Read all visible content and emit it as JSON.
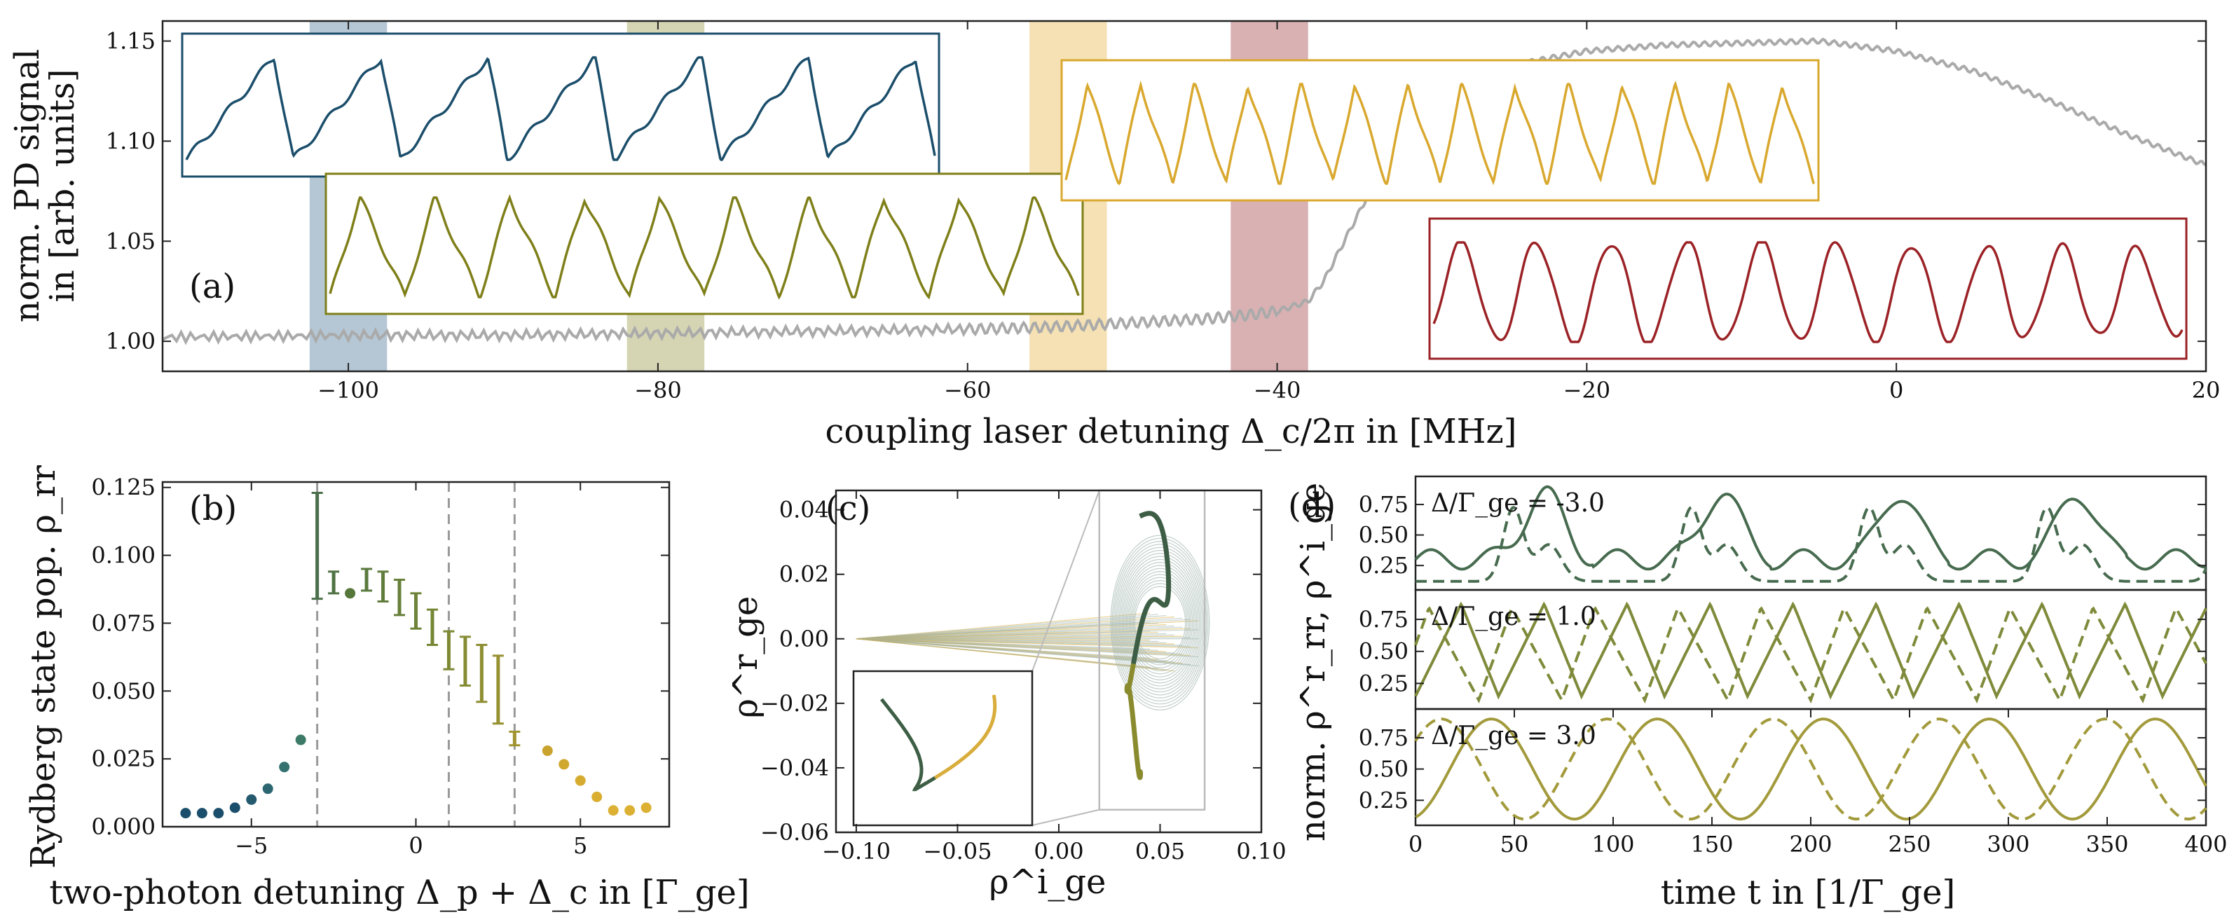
{
  "chart_data": [
    {
      "panel": "(a)",
      "type": "line",
      "xlabel": "coupling laser detuning Δ_c/2π in [MHz]",
      "ylabel_line1": "norm. PD signal",
      "ylabel_line2": "in [arb. units]",
      "xlim": [
        -112,
        20
      ],
      "ylim": [
        0.985,
        1.16
      ],
      "xticks": [
        -100,
        -80,
        -60,
        -40,
        -20,
        0,
        20
      ],
      "xtick_labels": [
        "−100",
        "−80",
        "−60",
        "−40",
        "−20",
        "0",
        "20"
      ],
      "yticks": [
        1.0,
        1.05,
        1.1,
        1.15
      ],
      "ytick_labels": [
        "1.00",
        "1.05",
        "1.10",
        "1.15"
      ],
      "series": [
        {
          "color": "#aaaaaa",
          "x": [
            -112,
            -100,
            -90,
            -80,
            -70,
            -60,
            -55,
            -50,
            -45,
            -42,
            -40,
            -38,
            -37,
            -36,
            -35,
            -34,
            -33,
            -32,
            -31,
            -30,
            -28,
            -26,
            -24,
            -22,
            -20,
            -15,
            -10,
            -5,
            0,
            5,
            10,
            15,
            20
          ],
          "y": [
            1.002,
            1.003,
            1.003,
            1.004,
            1.005,
            1.006,
            1.007,
            1.009,
            1.011,
            1.013,
            1.015,
            1.02,
            1.03,
            1.045,
            1.06,
            1.075,
            1.09,
            1.103,
            1.113,
            1.12,
            1.128,
            1.134,
            1.139,
            1.142,
            1.145,
            1.148,
            1.149,
            1.15,
            1.145,
            1.135,
            1.12,
            1.103,
            1.088
          ]
        }
      ],
      "bands": [
        {
          "x": [
            -102.5,
            -97.5
          ],
          "color": "#4e7a9a"
        },
        {
          "x": [
            -82,
            -77
          ],
          "color": "#9c9a4c"
        },
        {
          "x": [
            -56,
            -51
          ],
          "color": "#e8b74c"
        },
        {
          "x": [
            -43,
            -38
          ],
          "color": "#a8454a"
        }
      ],
      "insets": [
        {
          "color": "#1b4e6b",
          "cycles": 7
        },
        {
          "color": "#7f7f1a",
          "cycles": 10
        },
        {
          "color": "#d9a82e",
          "cycles": 14
        },
        {
          "color": "#9b2226",
          "cycles": 10
        }
      ]
    },
    {
      "panel": "(b)",
      "type": "scatter",
      "xlabel": "two-photon detuning Δ_p + Δ_c in [Γ_ge]",
      "ylabel": "Rydberg state pop. ρ_rr",
      "xlim": [
        -7.7,
        7.7
      ],
      "ylim": [
        0.0,
        0.127
      ],
      "xticks": [
        -5,
        0,
        5
      ],
      "xtick_labels": [
        "−5",
        "0",
        "5"
      ],
      "yticks": [
        0.0,
        0.025,
        0.05,
        0.075,
        0.1,
        0.125
      ],
      "ytick_labels": [
        "0.000",
        "0.025",
        "0.050",
        "0.075",
        "0.100",
        "0.125"
      ],
      "vlines": [
        -3,
        1,
        3
      ],
      "dots": [
        {
          "x": -7.0,
          "y": 0.005,
          "color": "#1b4e6b"
        },
        {
          "x": -6.5,
          "y": 0.005,
          "color": "#1b4e6b"
        },
        {
          "x": -6.0,
          "y": 0.005,
          "color": "#1b4e6b"
        },
        {
          "x": -5.5,
          "y": 0.007,
          "color": "#1b4e6b"
        },
        {
          "x": -5.0,
          "y": 0.01,
          "color": "#24596e"
        },
        {
          "x": -4.5,
          "y": 0.014,
          "color": "#2c6670"
        },
        {
          "x": -4.0,
          "y": 0.022,
          "color": "#35716f"
        },
        {
          "x": -3.5,
          "y": 0.032,
          "color": "#3d7a68"
        },
        {
          "x": -2.0,
          "y": 0.086,
          "color": "#55773a"
        },
        {
          "x": 4.0,
          "y": 0.028,
          "color": "#caa22e"
        },
        {
          "x": 4.5,
          "y": 0.023,
          "color": "#d1a82e"
        },
        {
          "x": 5.0,
          "y": 0.017,
          "color": "#d6ac30"
        },
        {
          "x": 5.5,
          "y": 0.011,
          "color": "#d9ae30"
        },
        {
          "x": 6.0,
          "y": 0.006,
          "color": "#dcb032"
        },
        {
          "x": 6.5,
          "y": 0.006,
          "color": "#dcb032"
        },
        {
          "x": 7.0,
          "y": 0.007,
          "color": "#dcb032"
        }
      ],
      "errorbars": [
        {
          "x": -3.0,
          "lo": 0.084,
          "hi": 0.123,
          "color": "#4a6e4a"
        },
        {
          "x": -2.5,
          "lo": 0.086,
          "hi": 0.094,
          "color": "#4f7244"
        },
        {
          "x": -1.5,
          "lo": 0.087,
          "hi": 0.095,
          "color": "#5a7a3e"
        },
        {
          "x": -1.0,
          "lo": 0.083,
          "hi": 0.094,
          "color": "#617d3c"
        },
        {
          "x": -0.5,
          "lo": 0.078,
          "hi": 0.091,
          "color": "#67803a"
        },
        {
          "x": 0.0,
          "lo": 0.073,
          "hi": 0.086,
          "color": "#6e8338"
        },
        {
          "x": 0.5,
          "lo": 0.067,
          "hi": 0.08,
          "color": "#768636"
        },
        {
          "x": 1.0,
          "lo": 0.058,
          "hi": 0.072,
          "color": "#7e8934"
        },
        {
          "x": 1.5,
          "lo": 0.052,
          "hi": 0.07,
          "color": "#868c33"
        },
        {
          "x": 2.0,
          "lo": 0.046,
          "hi": 0.067,
          "color": "#8e8e32"
        },
        {
          "x": 2.5,
          "lo": 0.038,
          "hi": 0.063,
          "color": "#969131"
        },
        {
          "x": 3.0,
          "lo": 0.03,
          "hi": 0.035,
          "color": "#a09430"
        }
      ]
    },
    {
      "panel": "(c)",
      "type": "scatter",
      "xlabel": "ρ^i_ge",
      "ylabel": "ρ^r_ge",
      "xlim": [
        -0.11,
        0.1
      ],
      "ylim": [
        -0.06,
        0.046
      ],
      "xticks": [
        -0.1,
        -0.05,
        0.0,
        0.05,
        0.1
      ],
      "xtick_labels": [
        "−0.10",
        "−0.05",
        "0.00",
        "0.05",
        "0.10"
      ],
      "yticks": [
        -0.06,
        -0.04,
        -0.02,
        0.0,
        0.02,
        0.04
      ],
      "ytick_labels": [
        "−0.06",
        "−0.04",
        "−0.02",
        "0.00",
        "0.02",
        "0.04"
      ],
      "colors": [
        "#3d5e45",
        "#8a8a2f",
        "#d9ad3b",
        "#9fb4ad"
      ]
    },
    {
      "panel": "(d)",
      "type": "line",
      "xlabel": "time t in [1/Γ_ge]",
      "ylabel": "norm. ρ^r_rr, ρ^i_ge",
      "xlim": [
        0,
        400
      ],
      "ylim": [
        0.05,
        0.98
      ],
      "xticks": [
        0,
        50,
        100,
        150,
        200,
        250,
        300,
        350,
        400
      ],
      "xtick_labels": [
        "0",
        "50",
        "100",
        "150",
        "200",
        "250",
        "300",
        "350",
        "400"
      ],
      "yticks": [
        0.25,
        0.5,
        0.75
      ],
      "ytick_labels": [
        "0.25",
        "0.50",
        "0.75"
      ],
      "subplots": [
        {
          "label": "Δ/Γ_ge = -3.0",
          "color": "#476b4f",
          "period": 90,
          "regime": "spiky"
        },
        {
          "label": "Δ/Γ_ge = 1.0",
          "color": "#7f8a3a",
          "period": 42,
          "regime": "mixed"
        },
        {
          "label": "Δ/Γ_ge = 3.0",
          "color": "#a29a3b",
          "period": 84,
          "regime": "sine"
        }
      ]
    }
  ]
}
